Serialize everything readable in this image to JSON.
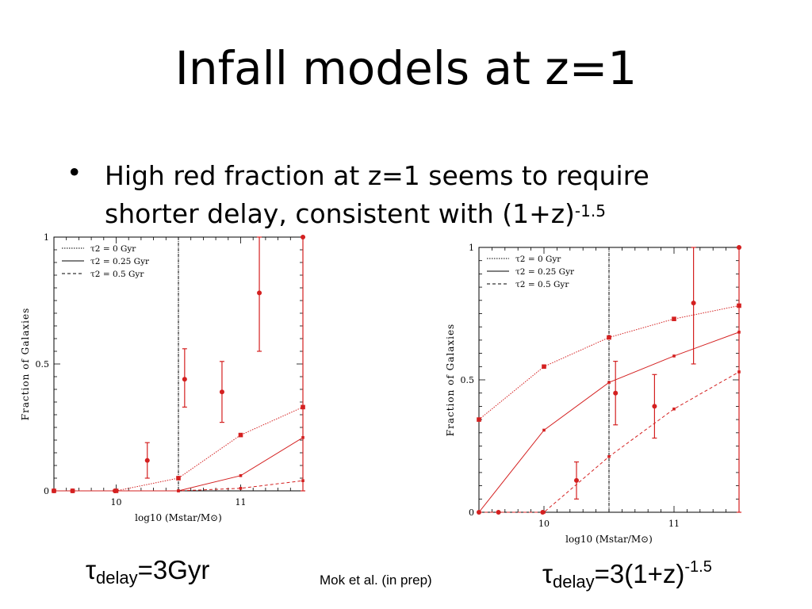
{
  "slide": {
    "title": "Infall models at z=1",
    "bullet_symbol": "•",
    "bullet_line1": "High red fraction at z=1 seems to require",
    "bullet_line2": "shorter delay, consistent with (1+z)",
    "bullet_exp": "-1.5",
    "caption_left_tau": "τ",
    "caption_left_sub": "delay",
    "caption_left_rest": "=3Gyr",
    "caption_mid": "Mok et al. (in prep)",
    "caption_right_tau": "τ",
    "caption_right_sub": "delay",
    "caption_right_rest": "=3(1+z)",
    "caption_right_exp": "-1.5"
  },
  "chart_data": [
    {
      "type": "line",
      "ylabel": "Fraction of Galaxies",
      "xlabel": "log10 (Mstar/M⊙)",
      "xlim": [
        9.5,
        11.5
      ],
      "ylim": [
        0,
        1
      ],
      "x_ticks": [
        "10",
        "11"
      ],
      "y_ticks": [
        "0",
        "0.5",
        "1"
      ],
      "vline": 10.5,
      "legend_position": "top-left",
      "legend": [
        "τ2 = 0 Gyr",
        "τ2 = 0.25 Gyr",
        "τ2 = 0.5 Gyr"
      ],
      "series": [
        {
          "name": "τ2 = 0 Gyr",
          "style": "dotted",
          "x": [
            9.5,
            9.65,
            10.0,
            10.5,
            11.0,
            11.5
          ],
          "values": [
            0,
            0,
            0,
            0.05,
            0.22,
            0.33
          ]
        },
        {
          "name": "τ2 = 0.25 Gyr",
          "style": "solid",
          "x": [
            9.5,
            10.0,
            10.5,
            11.0,
            11.5
          ],
          "values": [
            0,
            0,
            0,
            0.06,
            0.21
          ]
        },
        {
          "name": "τ2 = 0.5 Gyr",
          "style": "dashed",
          "x": [
            9.5,
            10.0,
            10.5,
            11.0,
            11.5
          ],
          "values": [
            0,
            0,
            0,
            0.01,
            0.04
          ]
        }
      ],
      "observed": {
        "x": [
          9.5,
          9.65,
          9.99,
          10.25,
          10.55,
          10.85,
          11.15,
          11.5
        ],
        "y": [
          0,
          0,
          0,
          0.12,
          0.44,
          0.39,
          0.78,
          1.0
        ],
        "y_low": [
          0,
          0,
          0,
          0.05,
          0.33,
          0.27,
          0.55,
          0
        ],
        "y_high": [
          0,
          0,
          0,
          0.19,
          0.56,
          0.51,
          1.0,
          1.0
        ]
      }
    },
    {
      "type": "line",
      "ylabel": "Fraction of Galaxies",
      "xlabel": "log10 (Mstar/M⊙)",
      "xlim": [
        9.5,
        11.5
      ],
      "ylim": [
        0,
        1
      ],
      "x_ticks": [
        "10",
        "11"
      ],
      "y_ticks": [
        "0",
        "0.5",
        "1"
      ],
      "vline": 10.5,
      "legend_position": "top-left",
      "legend": [
        "τ2 = 0 Gyr",
        "τ2 = 0.25 Gyr",
        "τ2 = 0.5 Gyr"
      ],
      "series": [
        {
          "name": "τ2 = 0 Gyr",
          "style": "dotted",
          "x": [
            9.5,
            10.0,
            10.5,
            11.0,
            11.5
          ],
          "values": [
            0.35,
            0.55,
            0.66,
            0.73,
            0.78
          ]
        },
        {
          "name": "τ2 = 0.25 Gyr",
          "style": "solid",
          "x": [
            9.5,
            10.0,
            10.5,
            11.0,
            11.5
          ],
          "values": [
            0,
            0.31,
            0.49,
            0.59,
            0.68
          ]
        },
        {
          "name": "τ2 = 0.5 Gyr",
          "style": "dashed",
          "x": [
            9.5,
            10.0,
            10.5,
            11.0,
            11.5
          ],
          "values": [
            0,
            0,
            0.21,
            0.39,
            0.53
          ]
        }
      ],
      "observed": {
        "x": [
          9.5,
          9.65,
          9.99,
          10.25,
          10.55,
          10.85,
          11.15,
          11.5
        ],
        "y": [
          0,
          0,
          0,
          0.12,
          0.45,
          0.4,
          0.79,
          1.0
        ],
        "y_low": [
          0,
          0,
          0,
          0.05,
          0.33,
          0.28,
          0.56,
          0
        ],
        "y_high": [
          0,
          0,
          0,
          0.19,
          0.57,
          0.52,
          1.0,
          1.0
        ]
      }
    }
  ]
}
